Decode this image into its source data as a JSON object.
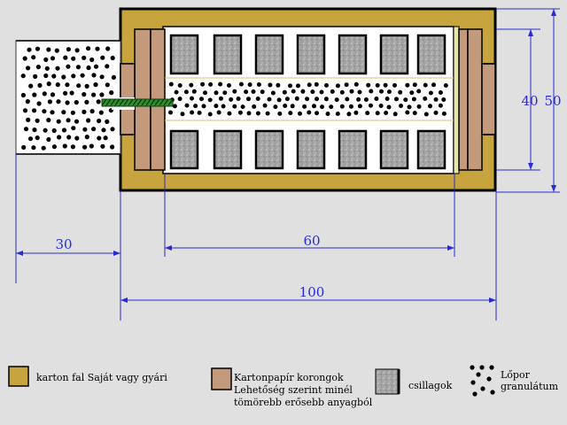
{
  "dimensions": {
    "fuse_length": "30",
    "stars_length": "60",
    "total_length": "100",
    "inner_height": "40",
    "outer_height": "50"
  },
  "legend": {
    "casing": {
      "label": "karton fal Saját vagy gyári",
      "color": "#c7a43e"
    },
    "discs": {
      "line1": "Kartonpapír korongok",
      "line2": "Lehetőség szerint minél",
      "line3": "tömörebb erősebb anyagból",
      "color": "#c49a7c"
    },
    "stars": {
      "label": "csillagok",
      "color": "#a8a8a8"
    },
    "powder": {
      "line1": "Lőpor",
      "line2": "granulátum",
      "color": "#000000"
    }
  },
  "colors": {
    "dimension": "#2a2ad8",
    "fuse": "#2f8f2f",
    "background": "#e0e0e0",
    "chamber": "#ffffff"
  }
}
